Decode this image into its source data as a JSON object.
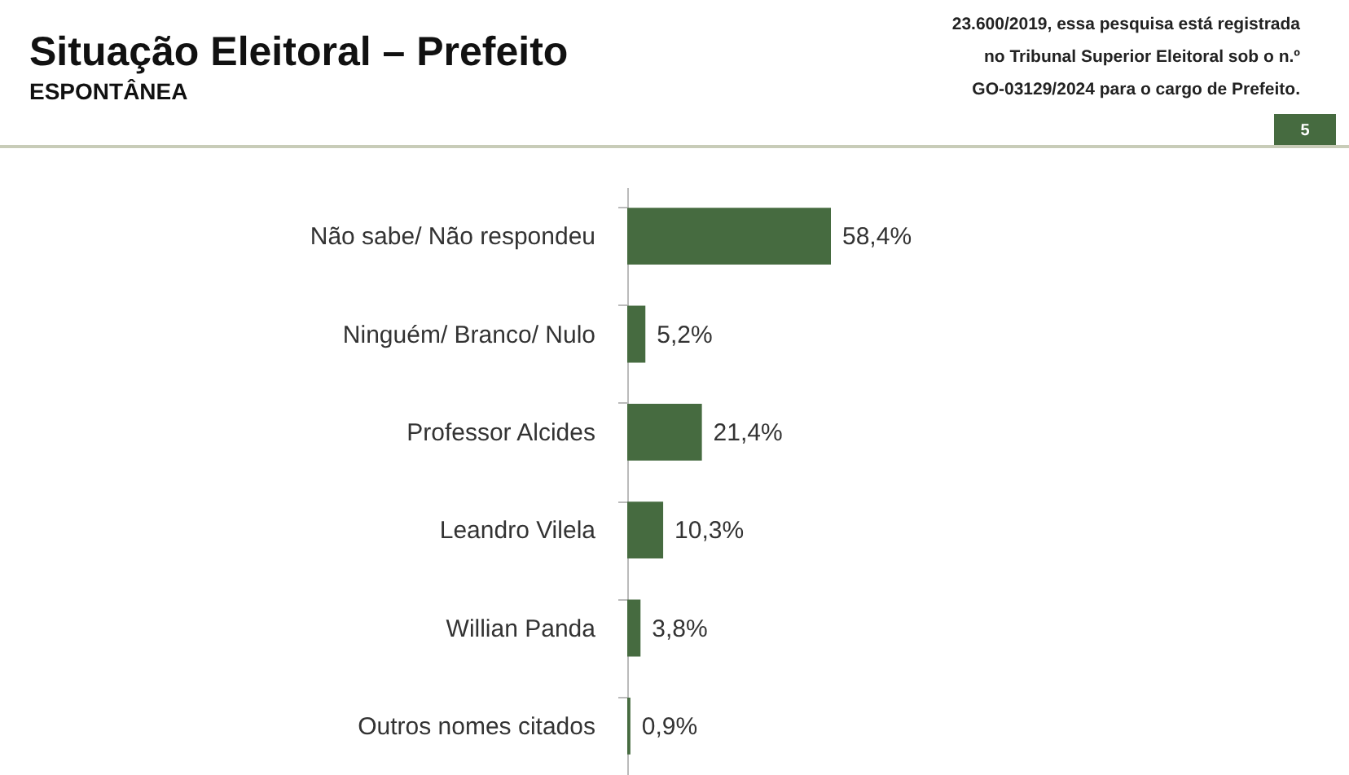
{
  "chart_data": {
    "type": "bar",
    "orientation": "horizontal",
    "title": "Situação Eleitoral – Prefeito",
    "subtitle": "ESPONTÂNEA",
    "categories": [
      "Não sabe/ Não respondeu",
      "Ninguém/ Branco/ Nulo",
      "Professor Alcides",
      "Leandro Vilela",
      "Willian Panda",
      "Outros nomes citados"
    ],
    "values": [
      58.4,
      5.2,
      21.4,
      10.3,
      3.8,
      0.9
    ],
    "value_labels": [
      "58,4%",
      "5,2%",
      "21,4%",
      "10,3%",
      "3,8%",
      "0,9%"
    ],
    "color": "#466b40",
    "grid": false,
    "annotations": [
      "23.600/2019, essa pesquisa está registrada",
      "no Tribunal Superior Eleitoral sob o n.º",
      "GO-03129/2024 para o cargo de Prefeito.",
      "5"
    ]
  }
}
